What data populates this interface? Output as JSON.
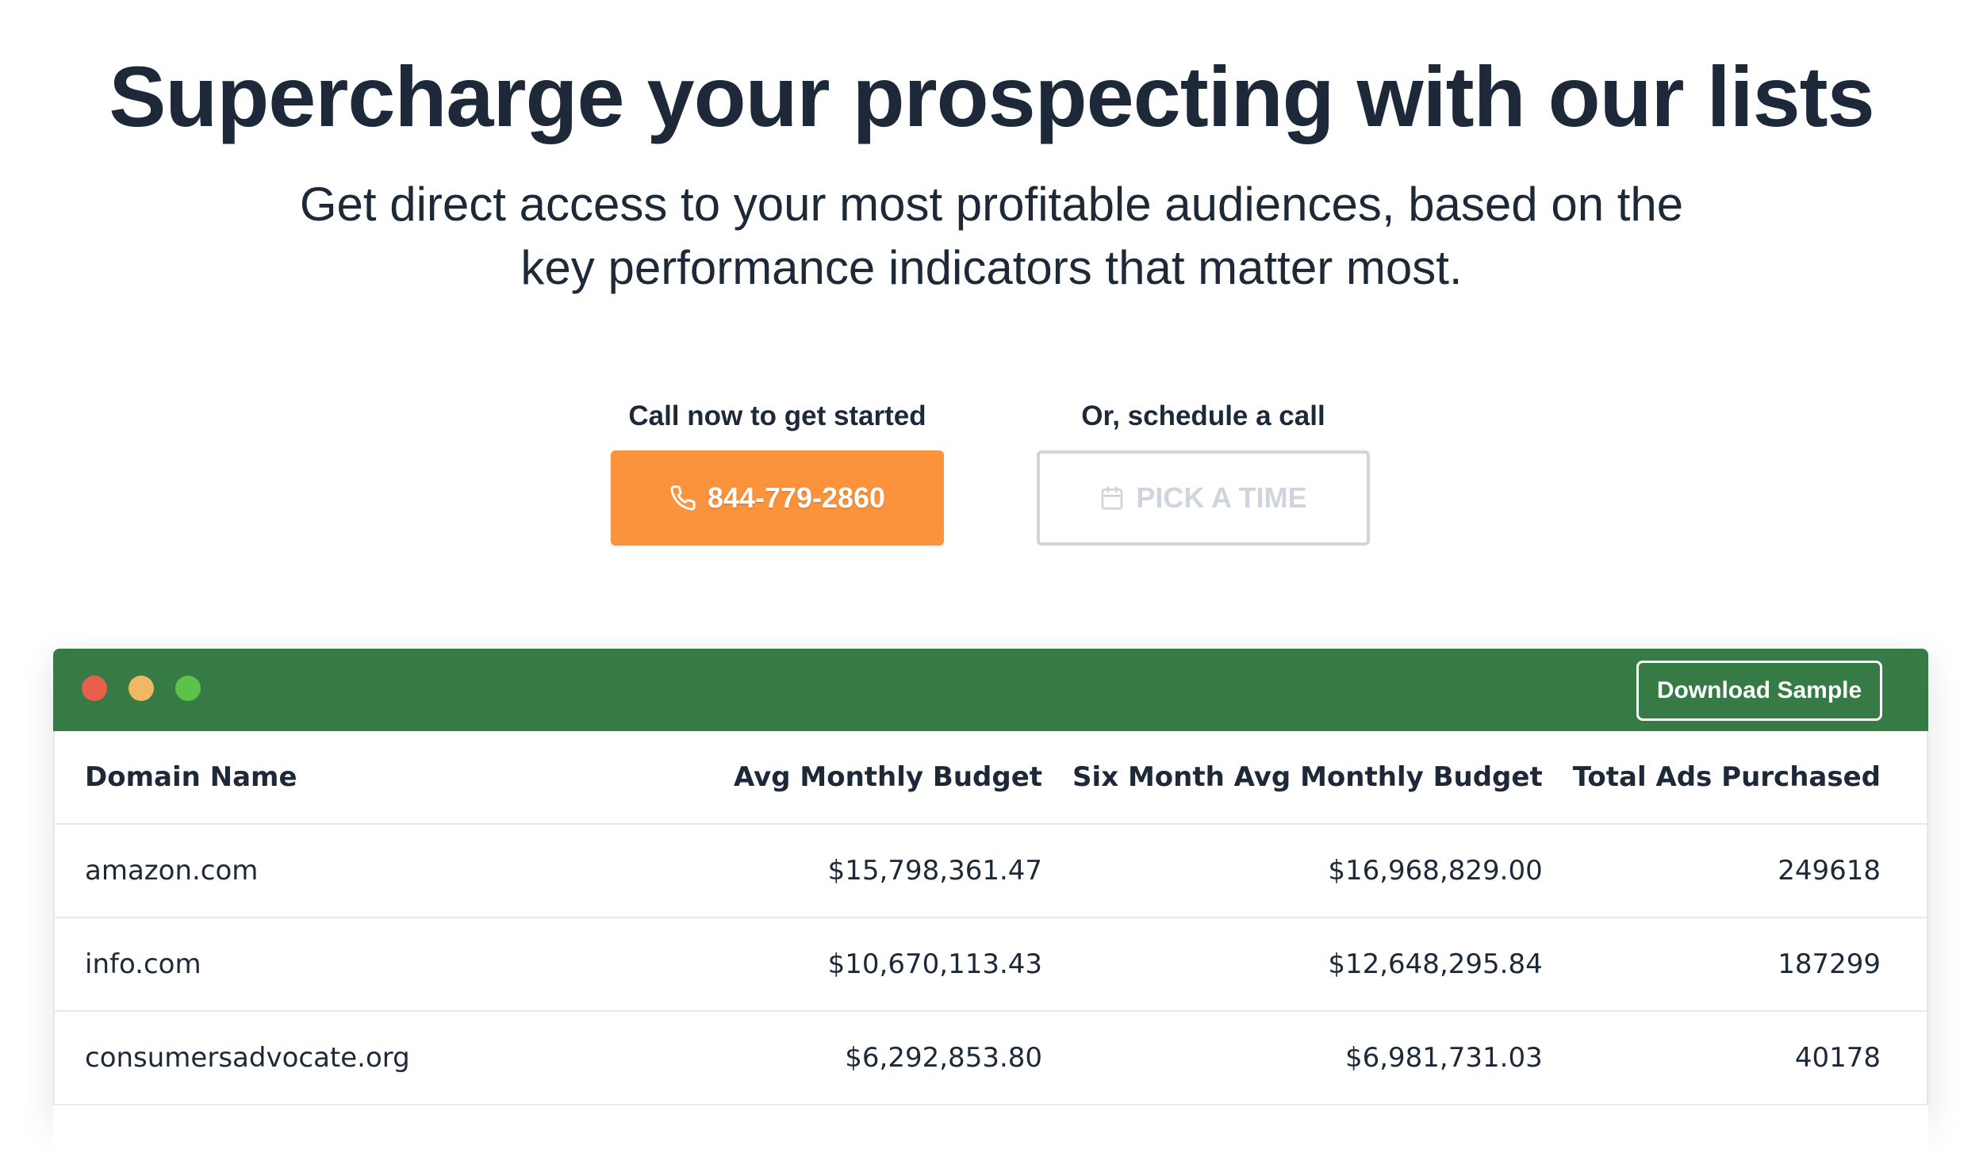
{
  "hero": {
    "title": "Supercharge your prospecting with our lists",
    "subtitle": "Get direct access to your most profitable audiences, based on the key performance indicators that matter most."
  },
  "cta": {
    "call_label": "Call now to get started",
    "phone": "844-779-2860",
    "schedule_label": "Or, schedule a call",
    "pick_time": "PICK A TIME",
    "icons": {
      "phone": "phone-icon",
      "calendar": "calendar-icon"
    },
    "colors": {
      "phone_button": "#fb923c",
      "pick_border": "#d0d5dd"
    }
  },
  "window": {
    "bar_color": "#367b45",
    "download_label": "Download Sample",
    "dots": [
      "#e8604c",
      "#f0b860",
      "#5cc24a"
    ]
  },
  "table": {
    "headers": [
      "Domain Name",
      "Avg Monthly Budget",
      "Six Month Avg Monthly Budget",
      "Total Ads Purchased"
    ],
    "rows": [
      [
        "amazon.com",
        "$15,798,361.47",
        "$16,968,829.00",
        "249618"
      ],
      [
        "info.com",
        "$10,670,113.43",
        "$12,648,295.84",
        "187299"
      ],
      [
        "consumersadvocate.org",
        "$6,292,853.80",
        "$6,981,731.03",
        "40178"
      ]
    ]
  }
}
